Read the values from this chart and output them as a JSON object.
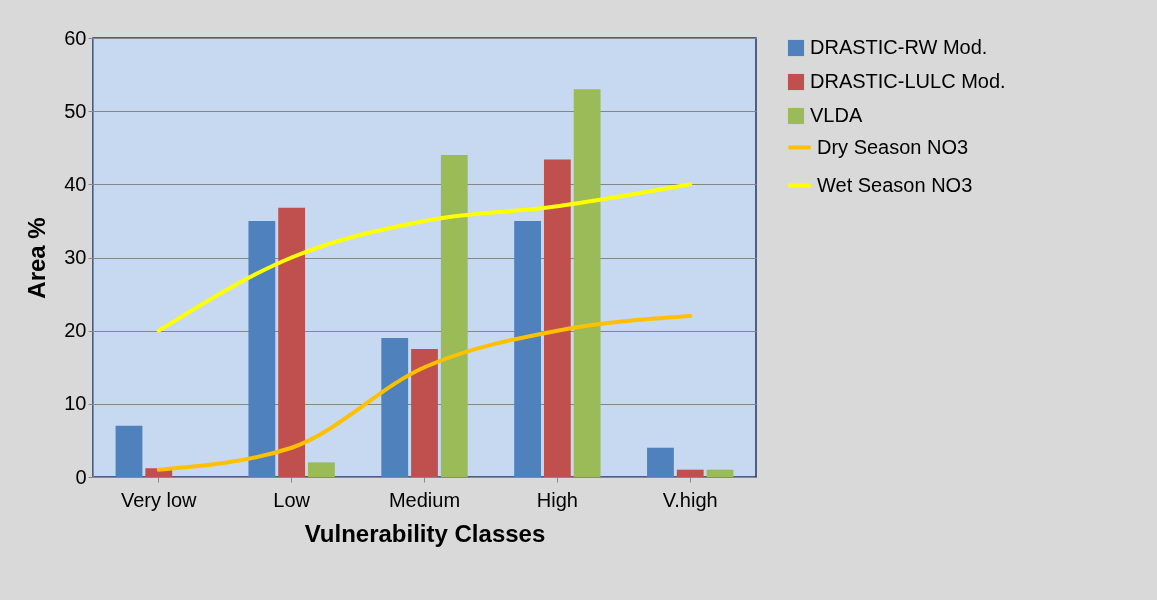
{
  "chart_data": {
    "type": "bar",
    "xlabel": "Vulnerability Classes",
    "ylabel": "Area %",
    "categories": [
      "Very low",
      "Low",
      "Medium",
      "High",
      "V.high"
    ],
    "series": [
      {
        "name": "DRASTIC-RW Mod.",
        "color": "#4f81bd",
        "values": [
          7,
          35,
          19,
          35,
          4
        ]
      },
      {
        "name": "DRASTIC-LULC Mod.",
        "color": "#c0504d",
        "values": [
          1.2,
          36.8,
          17.5,
          43.4,
          1
        ]
      },
      {
        "name": "VLDA",
        "color": "#9bbb59",
        "values": [
          0,
          2,
          44,
          53,
          1
        ]
      },
      {
        "name": "Dry Season NO3",
        "type": "line",
        "color": "#ffc000",
        "values": [
          1,
          4,
          15,
          20,
          22
        ]
      },
      {
        "name": "Wet Season NO3",
        "type": "line",
        "color": "#ffff00",
        "values": [
          20,
          30,
          35,
          37,
          40
        ]
      }
    ],
    "ylim": [
      0,
      60
    ],
    "yticks": [
      0,
      10,
      20,
      30,
      40,
      50,
      60
    ],
    "grid": "y",
    "legend": "right",
    "marker": "none",
    "line_style": "solid"
  }
}
